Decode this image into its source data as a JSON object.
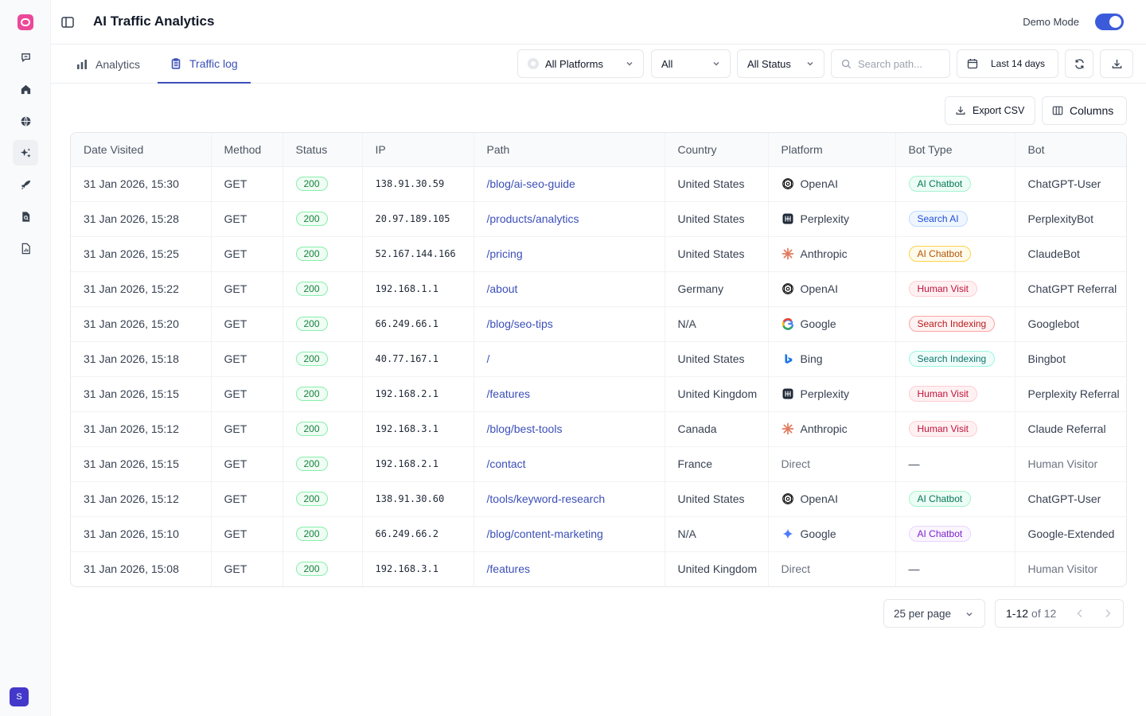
{
  "header": {
    "title": "AI Traffic Analytics",
    "demo_mode_label": "Demo Mode",
    "demo_mode_on": true
  },
  "sidebar": {
    "items": [
      {
        "icon": "chat-icon"
      },
      {
        "icon": "home-icon"
      },
      {
        "icon": "globe-icon"
      },
      {
        "icon": "sparkles-icon",
        "active": true
      },
      {
        "icon": "rocket-icon"
      },
      {
        "icon": "document-search-icon"
      },
      {
        "icon": "document-chart-icon"
      }
    ],
    "avatar_initial": "S"
  },
  "tabs": [
    {
      "label": "Analytics",
      "icon": "bar-chart-icon",
      "active": false
    },
    {
      "label": "Traffic log",
      "icon": "clipboard-list-icon",
      "active": true
    }
  ],
  "filters": {
    "platform": "All Platforms",
    "method": "All",
    "status": "All Status",
    "search_placeholder": "Search path...",
    "date_range": "Last 14 days"
  },
  "toolbar": {
    "export_label": "Export CSV",
    "columns_label": "Columns"
  },
  "table": {
    "columns": [
      "Date Visited",
      "Method",
      "Status",
      "IP",
      "Path",
      "Country",
      "Platform",
      "Bot Type",
      "Bot"
    ],
    "rows": [
      {
        "date": "31 Jan 2026, 15:30",
        "method": "GET",
        "status": "200",
        "ip": "138.91.30.59",
        "path": "/blog/ai-seo-guide",
        "country": "United States",
        "platform": "OpenAI",
        "picon": "openai",
        "bot_type": "AI Chatbot",
        "btc": "b-chat-green",
        "bot": "ChatGPT-User"
      },
      {
        "date": "31 Jan 2026, 15:28",
        "method": "GET",
        "status": "200",
        "ip": "20.97.189.105",
        "path": "/products/analytics",
        "country": "United States",
        "platform": "Perplexity",
        "picon": "perplexity",
        "bot_type": "Search AI",
        "btc": "b-search",
        "bot": "PerplexityBot"
      },
      {
        "date": "31 Jan 2026, 15:25",
        "method": "GET",
        "status": "200",
        "ip": "52.167.144.166",
        "path": "/pricing",
        "country": "United States",
        "platform": "Anthropic",
        "picon": "anthropic",
        "bot_type": "AI Chatbot",
        "btc": "b-chat-amber",
        "bot": "ClaudeBot"
      },
      {
        "date": "31 Jan 2026, 15:22",
        "method": "GET",
        "status": "200",
        "ip": "192.168.1.1",
        "path": "/about",
        "country": "Germany",
        "platform": "OpenAI",
        "picon": "openai",
        "bot_type": "Human Visit",
        "btc": "b-human",
        "bot": "ChatGPT Referral"
      },
      {
        "date": "31 Jan 2026, 15:20",
        "method": "GET",
        "status": "200",
        "ip": "66.249.66.1",
        "path": "/blog/seo-tips",
        "country": "N/A",
        "platform": "Google",
        "picon": "google",
        "bot_type": "Search Indexing",
        "btc": "b-index-red",
        "bot": "Googlebot"
      },
      {
        "date": "31 Jan 2026, 15:18",
        "method": "GET",
        "status": "200",
        "ip": "40.77.167.1",
        "path": "/",
        "country": "United States",
        "platform": "Bing",
        "picon": "bing",
        "bot_type": "Search Indexing",
        "btc": "b-index-teal",
        "bot": "Bingbot"
      },
      {
        "date": "31 Jan 2026, 15:15",
        "method": "GET",
        "status": "200",
        "ip": "192.168.2.1",
        "path": "/features",
        "country": "United Kingdom",
        "platform": "Perplexity",
        "picon": "perplexity",
        "bot_type": "Human Visit",
        "btc": "b-human",
        "bot": "Perplexity Referral"
      },
      {
        "date": "31 Jan 2026, 15:12",
        "method": "GET",
        "status": "200",
        "ip": "192.168.3.1",
        "path": "/blog/best-tools",
        "country": "Canada",
        "platform": "Anthropic",
        "picon": "anthropic",
        "bot_type": "Human Visit",
        "btc": "b-human",
        "bot": "Claude Referral"
      },
      {
        "date": "31 Jan 2026, 15:15",
        "method": "GET",
        "status": "200",
        "ip": "192.168.2.1",
        "path": "/contact",
        "country": "France",
        "platform": "Direct",
        "picon": "",
        "bot_type": "—",
        "btc": "",
        "bot": "Human Visitor"
      },
      {
        "date": "31 Jan 2026, 15:12",
        "method": "GET",
        "status": "200",
        "ip": "138.91.30.60",
        "path": "/tools/keyword-research",
        "country": "United States",
        "platform": "OpenAI",
        "picon": "openai",
        "bot_type": "AI Chatbot",
        "btc": "b-chat-green",
        "bot": "ChatGPT-User"
      },
      {
        "date": "31 Jan 2026, 15:10",
        "method": "GET",
        "status": "200",
        "ip": "66.249.66.2",
        "path": "/blog/content-marketing",
        "country": "N/A",
        "platform": "Google",
        "picon": "gemini",
        "bot_type": "AI Chatbot",
        "btc": "b-chat-purple",
        "bot": "Google-Extended"
      },
      {
        "date": "31 Jan 2026, 15:08",
        "method": "GET",
        "status": "200",
        "ip": "192.168.3.1",
        "path": "/features",
        "country": "United Kingdom",
        "platform": "Direct",
        "picon": "",
        "bot_type": "—",
        "btc": "",
        "bot": "Human Visitor"
      }
    ]
  },
  "pagination": {
    "per_page": "25 per page",
    "range": "1-12",
    "of_label": "of",
    "total": "12"
  }
}
